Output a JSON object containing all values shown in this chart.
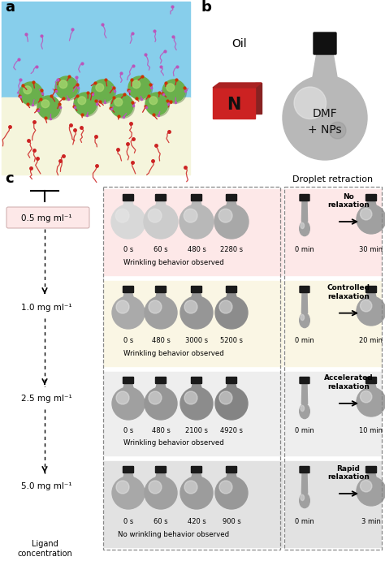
{
  "panel_a_label": "a",
  "panel_b_label": "b",
  "panel_c_label": "c",
  "panel_b_oil_text": "Oil",
  "panel_b_dmf_text": "DMF\n+ NPs",
  "panel_b_n_text": "N",
  "droplet_retraction_title": "Droplet retraction",
  "rows": [
    {
      "concentration": "0.5 mg ml⁻¹",
      "bg_color": "#fde8e8",
      "times": [
        "0 s",
        "60 s",
        "480 s",
        "2280 s"
      ],
      "wrinkling": "Wrinkling behavior observed",
      "retraction_label": "No\nrelaxation",
      "retraction_time": "30 min",
      "conc_bg": "#fce8e8"
    },
    {
      "concentration": "1.0 mg ml⁻¹",
      "bg_color": "#faf6e4",
      "times": [
        "0 s",
        "480 s",
        "3000 s",
        "5200 s"
      ],
      "wrinkling": "Wrinkling behavior observed",
      "retraction_label": "Controlled\nrelaxation",
      "retraction_time": "20 min",
      "conc_bg": "#ffffff"
    },
    {
      "concentration": "2.5 mg ml⁻¹",
      "bg_color": "#eeeeee",
      "times": [
        "0 s",
        "480 s",
        "2100 s",
        "4920 s"
      ],
      "wrinkling": "Wrinkling behavior observed",
      "retraction_label": "Accelerated\nrelaxation",
      "retraction_time": "10 min",
      "conc_bg": "#eeeeee"
    },
    {
      "concentration": "5.0 mg ml⁻¹",
      "bg_color": "#e2e2e2",
      "times": [
        "0 s",
        "60 s",
        "420 s",
        "900 s"
      ],
      "wrinkling": "No wrinkling behavior observed",
      "retraction_label": "Rapid\nrelaxation",
      "retraction_time": "3 min",
      "conc_bg": "#e2e2e2"
    }
  ],
  "ligand_concentration_label": "Ligand\nconcentration",
  "bg_top": "#87ceeb",
  "bg_bottom": "#f5f5dc",
  "nanoparticle_color": "#6ab04c",
  "fig_bg": "#ffffff"
}
